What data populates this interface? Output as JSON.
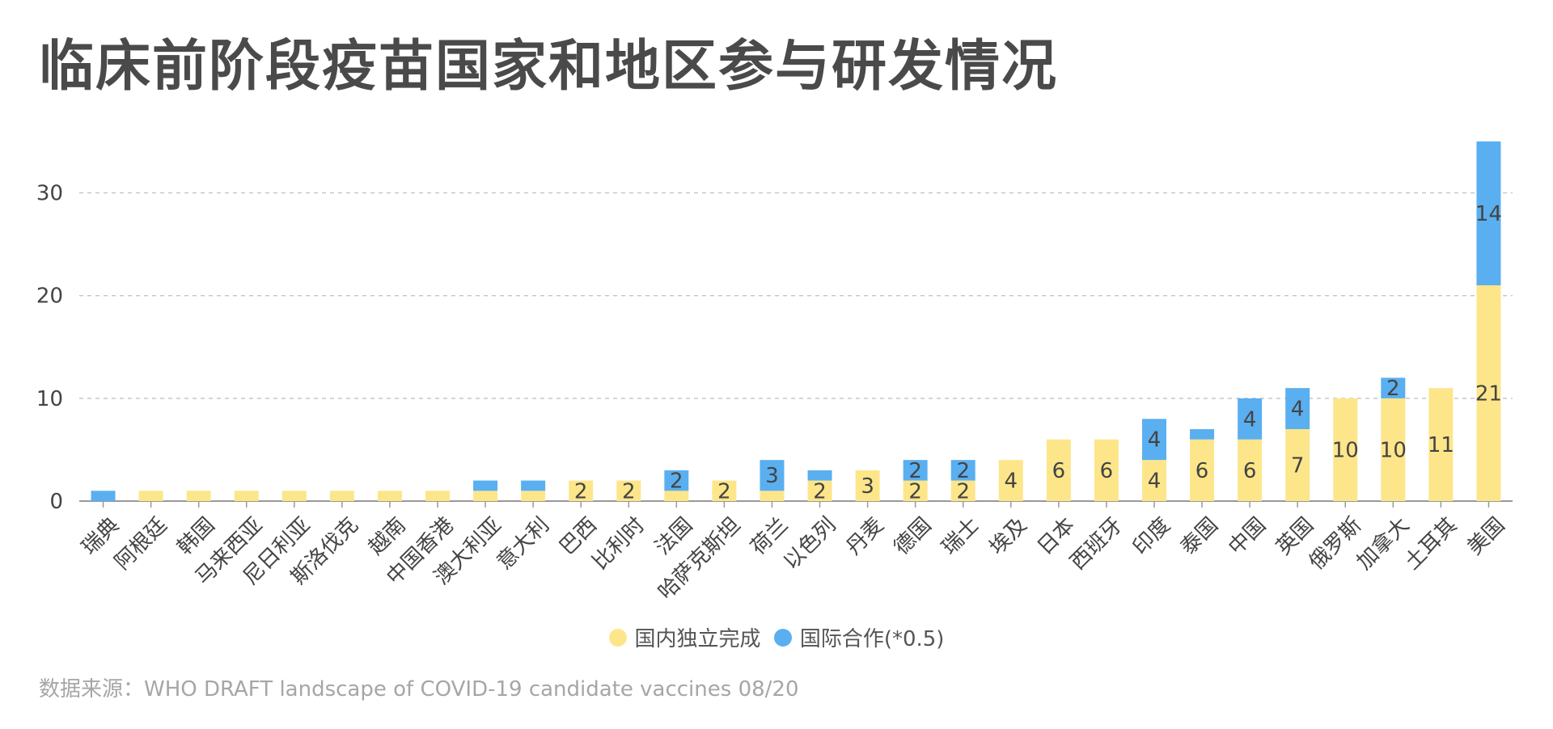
{
  "title": "临床前阶段疫苗国家和地区参与研发情况",
  "source": "数据来源：WHO DRAFT landscape of COVID-19 candidate vaccines 08/20",
  "colors": {
    "domestic": "#fde68a",
    "international": "#5aaff0",
    "grid": "#c8c8c8",
    "axis": "#999999",
    "text": "#444444"
  },
  "chart_data": {
    "type": "bar",
    "stacked": true,
    "categories": [
      "瑞典",
      "阿根廷",
      "韩国",
      "马来西亚",
      "尼日利亚",
      "斯洛伐克",
      "越南",
      "中国香港",
      "澳大利亚",
      "意大利",
      "巴西",
      "比利时",
      "法国",
      "哈萨克斯坦",
      "荷兰",
      "以色列",
      "丹麦",
      "德国",
      "瑞士",
      "埃及",
      "日本",
      "西班牙",
      "印度",
      "泰国",
      "中国",
      "英国",
      "俄罗斯",
      "加拿大",
      "土耳其",
      "美国"
    ],
    "series": [
      {
        "name": "国内独立完成",
        "color": "#fde68a",
        "values": [
          0,
          1,
          1,
          1,
          1,
          1,
          1,
          1,
          1,
          1,
          2,
          2,
          1,
          2,
          1,
          2,
          3,
          2,
          2,
          4,
          6,
          6,
          4,
          6,
          6,
          7,
          10,
          10,
          11,
          21
        ]
      },
      {
        "name": "国际合作(*0.5)",
        "color": "#5aaff0",
        "values": [
          1,
          0,
          0,
          0,
          0,
          0,
          0,
          0,
          1,
          1,
          0,
          0,
          2,
          0,
          3,
          1,
          0,
          2,
          2,
          0,
          0,
          0,
          4,
          1,
          4,
          4,
          0,
          2,
          0,
          14
        ]
      }
    ],
    "data_labels": [
      [
        null,
        null,
        null,
        null,
        null,
        null,
        null,
        null,
        null,
        null,
        "2",
        "2",
        null,
        "2",
        null,
        "2",
        "3",
        "2",
        "2",
        "4",
        "6",
        "6",
        "4",
        "6",
        "6",
        "7",
        "10",
        "10",
        "11",
        "21"
      ],
      [
        null,
        null,
        null,
        null,
        null,
        null,
        null,
        null,
        null,
        null,
        null,
        null,
        "2",
        null,
        "3",
        null,
        null,
        "2",
        "2",
        null,
        null,
        null,
        "4",
        null,
        "4",
        "4",
        null,
        "2",
        null,
        "14"
      ]
    ],
    "yticks": [
      "0",
      "10",
      "20",
      "30"
    ],
    "ylim": [
      0,
      35
    ],
    "grid": true,
    "legend_position": "bottom-center"
  }
}
